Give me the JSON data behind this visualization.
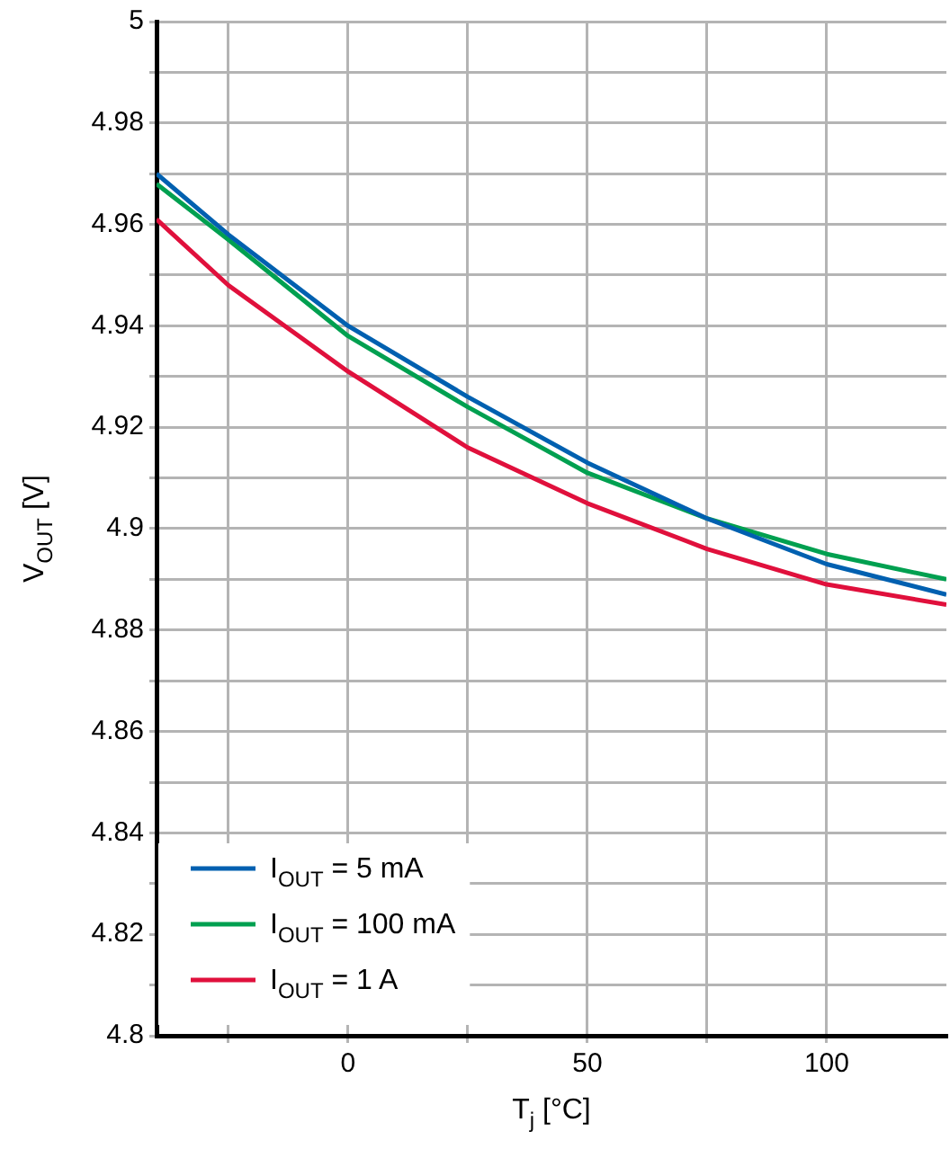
{
  "chart_data": {
    "type": "line",
    "xlabel": "T$_{j}$ [°C]",
    "ylabel": "V$_{OUT}$ [V]",
    "xlim": [
      -40,
      125
    ],
    "xticks": [
      {
        "value": -25,
        "label": null
      },
      0,
      {
        "value": 25,
        "label": null
      },
      50,
      {
        "value": 75,
        "label": null
      },
      100
    ],
    "ylim": [
      4.8,
      5
    ],
    "yticks": [
      4.8,
      {
        "value": 4.81,
        "label": null
      },
      4.82,
      {
        "value": 4.83,
        "label": null
      },
      4.84,
      {
        "value": 4.85,
        "label": null
      },
      4.86,
      {
        "value": 4.87,
        "label": null
      },
      4.88,
      {
        "value": 4.89,
        "label": null
      },
      4.9,
      {
        "value": 4.91,
        "label": null
      },
      4.92,
      {
        "value": 4.93,
        "label": null
      },
      4.94,
      {
        "value": 4.95,
        "label": null
      },
      4.96,
      {
        "value": 4.97,
        "label": null
      },
      4.98,
      {
        "value": 4.99,
        "label": null
      },
      5
    ],
    "grid": true,
    "legend": "bottom left",
    "marker": "none",
    "line_style": "solid",
    "series": [
      {
        "name": "I$_{OUT}$ = 5 mA",
        "color": "#0060b0",
        "x": [
          -40,
          -25,
          0,
          25,
          50,
          75,
          100,
          125
        ],
        "values": [
          4.97,
          4.958,
          4.94,
          4.926,
          4.913,
          4.902,
          4.893,
          4.887
        ]
      },
      {
        "name": "I$_{OUT}$ = 100 mA",
        "color": "#00a050",
        "x": [
          -40,
          -25,
          0,
          25,
          50,
          75,
          100,
          125
        ],
        "values": [
          4.968,
          4.957,
          4.938,
          4.924,
          4.911,
          4.902,
          4.895,
          4.89
        ]
      },
      {
        "name": "I$_{OUT}$ = 1 A",
        "color": "#e0103c",
        "x": [
          -40,
          -25,
          0,
          25,
          50,
          75,
          100,
          125
        ],
        "values": [
          4.961,
          4.948,
          4.931,
          4.916,
          4.905,
          4.896,
          4.889,
          4.885
        ]
      }
    ]
  }
}
